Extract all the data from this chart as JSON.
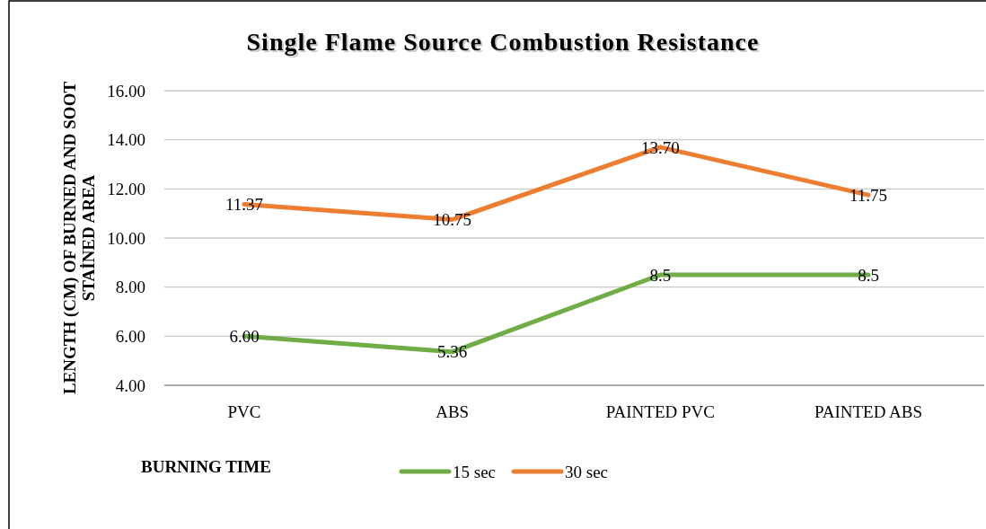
{
  "chart_data": {
    "type": "line",
    "title": "Single Flame Source Combustion Resistance",
    "ylabel": "LENGTH (CM) OF BURNED AND SOOT STAİNED AREA",
    "legend_title": "BURNING TIME",
    "categories": [
      "PVC",
      "ABS",
      "PAINTED PVC",
      "PAINTED ABS"
    ],
    "series": [
      {
        "name": "15 sec",
        "color": "#70ad47",
        "values": [
          6.0,
          5.36,
          8.5,
          8.5
        ],
        "value_labels": [
          "6.00",
          "5.36",
          "8.5",
          "8.5"
        ]
      },
      {
        "name": "30 sec",
        "color": "#ed7d31",
        "values": [
          11.37,
          10.75,
          13.7,
          11.75
        ],
        "value_labels": [
          "11.37",
          "10.75",
          "13.70",
          "11.75"
        ]
      }
    ],
    "ylim": [
      4,
      16
    ],
    "yticks": [
      {
        "value": 4,
        "label": "4.00"
      },
      {
        "value": 6,
        "label": "6.00"
      },
      {
        "value": 8,
        "label": "8.00"
      },
      {
        "value": 10,
        "label": "10.00"
      },
      {
        "value": 12,
        "label": "12.00"
      },
      {
        "value": 14,
        "label": "14.00"
      },
      {
        "value": 16,
        "label": "16.00"
      }
    ],
    "grid": "y",
    "legend": "bottom",
    "marker": "none",
    "line_style": "solid"
  }
}
